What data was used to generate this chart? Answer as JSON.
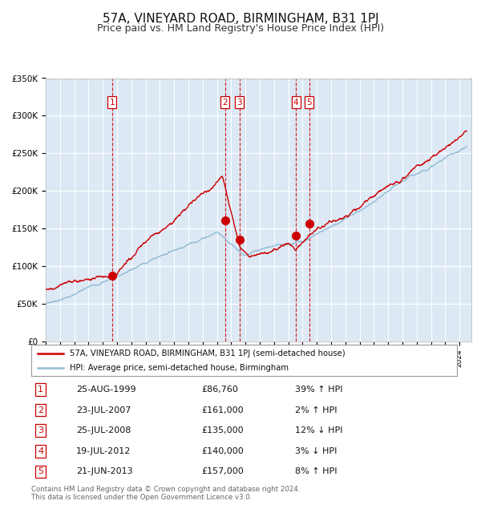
{
  "title": "57A, VINEYARD ROAD, BIRMINGHAM, B31 1PJ",
  "subtitle": "Price paid vs. HM Land Registry's House Price Index (HPI)",
  "title_fontsize": 11,
  "subtitle_fontsize": 9,
  "background_color": "#dce9f5",
  "fig_bg_color": "#ffffff",
  "hpi_color": "#90bcd4",
  "price_color": "#cc0000",
  "sale_marker_color": "#cc0000",
  "vline_color": "#cc0000",
  "ylim": [
    0,
    350000
  ],
  "yticks": [
    0,
    50000,
    100000,
    150000,
    200000,
    250000,
    300000,
    350000
  ],
  "ytick_labels": [
    "£0",
    "£50K",
    "£100K",
    "£150K",
    "£200K",
    "£250K",
    "£300K",
    "£350K"
  ],
  "legend_line1": "57A, VINEYARD ROAD, BIRMINGHAM, B31 1PJ (semi-detached house)",
  "legend_line2": "HPI: Average price, semi-detached house, Birmingham",
  "table_rows": [
    [
      "1",
      "25-AUG-1999",
      "£86,760",
      "39% ↑ HPI"
    ],
    [
      "2",
      "23-JUL-2007",
      "£161,000",
      "2% ↑ HPI"
    ],
    [
      "3",
      "25-JUL-2008",
      "£135,000",
      "12% ↓ HPI"
    ],
    [
      "4",
      "19-JUL-2012",
      "£140,000",
      "3% ↓ HPI"
    ],
    [
      "5",
      "21-JUN-2013",
      "£157,000",
      "8% ↑ HPI"
    ]
  ],
  "sale_dates": [
    1999.65,
    2007.56,
    2008.57,
    2012.54,
    2013.47
  ],
  "sale_prices": [
    86760,
    161000,
    135000,
    140000,
    157000
  ],
  "sale_labels": [
    "1",
    "2",
    "3",
    "4",
    "5"
  ],
  "footer": "Contains HM Land Registry data © Crown copyright and database right 2024.\nThis data is licensed under the Open Government Licence v3.0."
}
